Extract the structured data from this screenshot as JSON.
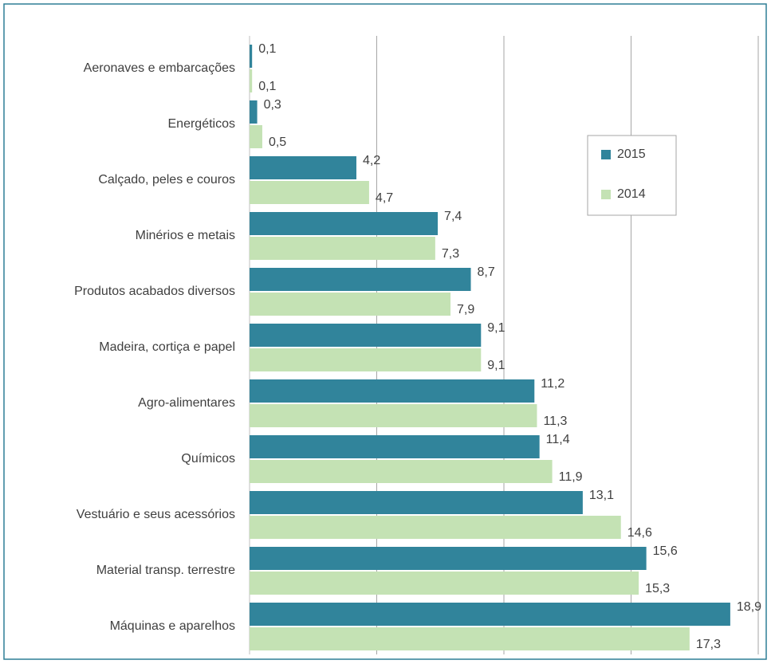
{
  "chart_data": {
    "type": "hbar",
    "categories": [
      "Aeronaves e embarcações",
      "Energéticos",
      "Calçado, peles e couros",
      "Minérios e metais",
      "Produtos acabados diversos",
      "Madeira, cortiça e papel",
      "Agro-alimentares",
      "Químicos",
      "Vestuário e seus acessórios",
      "Material transp. terrestre",
      "Máquinas e aparelhos"
    ],
    "series": [
      {
        "name": "2015",
        "color": "#31849b",
        "values": [
          0.1,
          0.3,
          4.2,
          7.4,
          8.7,
          9.1,
          11.2,
          11.4,
          13.1,
          15.6,
          18.9
        ],
        "value_labels": [
          "0,1",
          "0,3",
          "4,2",
          "7,4",
          "8,7",
          "9,1",
          "11,2",
          "11,4",
          "13,1",
          "15,6",
          "18,9"
        ]
      },
      {
        "name": "2014",
        "color": "#c4e2b4",
        "values": [
          0.1,
          0.5,
          4.7,
          7.3,
          7.9,
          9.1,
          11.3,
          11.9,
          14.6,
          15.3,
          17.3
        ],
        "value_labels": [
          "0,1",
          "0,5",
          "4,7",
          "7,3",
          "7,9",
          "9,1",
          "11,3",
          "11,9",
          "14,6",
          "15,3",
          "17,3"
        ]
      }
    ],
    "xlim": [
      0,
      20
    ],
    "xticks": [
      0,
      5,
      10,
      15,
      20
    ],
    "tick_labels": false,
    "grid": true,
    "legend": "right"
  }
}
